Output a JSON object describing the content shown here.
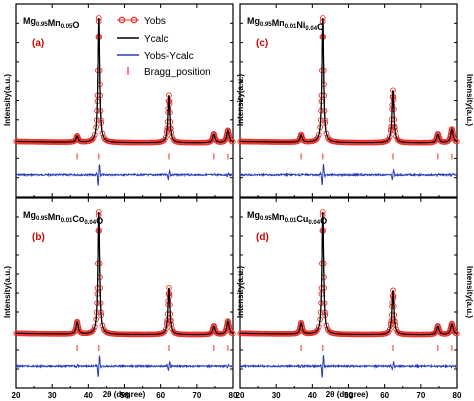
{
  "figure": {
    "xlabel": "2θ (degree)",
    "ylabel": "Intensity(a.u.)",
    "legend": {
      "obs": "Yobs",
      "calc": "Ycalc",
      "diff": "Yobs-Ycalc",
      "bragg": "Bragg_position"
    }
  },
  "panels": [
    {
      "label": "(a)",
      "compound": {
        "base": "Mg",
        "s1": "0.95",
        "m1": "Mn",
        "s2": "0.05",
        "tail": "O",
        "dopant": ""
      },
      "dopant_sub": ""
    },
    {
      "label": "(b)",
      "compound": {
        "base": "Mg",
        "s1": "0.95",
        "m1": "Mn",
        "s2": "0.01",
        "tail": "Co",
        "dopant": "0.04"
      }
    },
    {
      "label": "(c)",
      "compound": {
        "base": "Mg",
        "s1": "0.95",
        "m1": "Mn",
        "s2": "0.01",
        "tail": "Ni",
        "dopant": "0.04"
      }
    },
    {
      "label": "(d)",
      "compound": {
        "base": "Mg",
        "s1": "0.95",
        "m1": "Mn",
        "s2": "0.01",
        "tail": "Cu",
        "dopant": "0.04"
      }
    }
  ],
  "chart_data": {
    "type": "line",
    "xlabel": "2θ (degree)",
    "ylabel": "Intensity(a.u.)",
    "xlim": [
      20,
      80
    ],
    "x_ticks": [
      20,
      30,
      40,
      50,
      60,
      70,
      80
    ],
    "peaks_2theta": [
      36.9,
      42.9,
      62.3,
      74.7,
      78.6
    ],
    "series": [
      {
        "name": "Yobs",
        "color": "#e8312c"
      },
      {
        "name": "Ycalc",
        "color": "#000000"
      },
      {
        "name": "Yobs-Ycalc",
        "color": "#2b3fb8"
      },
      {
        "name": "Bragg_position",
        "color": "#e8312c"
      }
    ],
    "panels": [
      {
        "label": "(a)",
        "relative_peak_intensity": [
          0.05,
          1.0,
          0.38,
          0.07,
          0.1
        ]
      },
      {
        "label": "(b)",
        "relative_peak_intensity": [
          0.1,
          1.0,
          0.38,
          0.07,
          0.11
        ]
      },
      {
        "label": "(c)",
        "relative_peak_intensity": [
          0.06,
          1.0,
          0.42,
          0.07,
          0.11
        ]
      },
      {
        "label": "(d)",
        "relative_peak_intensity": [
          0.09,
          1.0,
          0.36,
          0.07,
          0.09
        ]
      }
    ]
  }
}
